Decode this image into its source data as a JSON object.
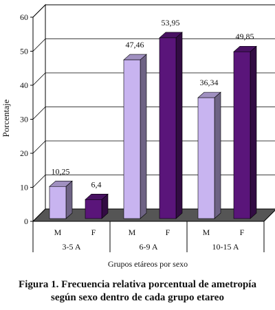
{
  "chart_data": {
    "type": "bar",
    "title": "",
    "ylabel": "Porcentaje",
    "xlabel": "Grupos etáreos por sexo",
    "ylim": [
      0,
      60
    ],
    "yticks": [
      "0",
      "10",
      "20",
      "30",
      "40",
      "50",
      "60"
    ],
    "categories": [
      {
        "group": "3-5 A",
        "sex": "M",
        "value": 10.25,
        "label": "10,25",
        "color": "#c8b4f0"
      },
      {
        "group": "3-5 A",
        "sex": "F",
        "value": 6.4,
        "label": "6,4",
        "color": "#5a157a"
      },
      {
        "group": "6-9 A",
        "sex": "M",
        "value": 47.46,
        "label": "47,46",
        "color": "#c8b4f0"
      },
      {
        "group": "6-9 A",
        "sex": "F",
        "value": 53.95,
        "label": "53,95",
        "color": "#5a157a"
      },
      {
        "group": "10-15 A",
        "sex": "M",
        "value": 36.34,
        "label": "36,34",
        "color": "#c8b4f0"
      },
      {
        "group": "10-15 A",
        "sex": "F",
        "value": 49.85,
        "label": "49,85",
        "color": "#5a157a"
      }
    ],
    "groups": [
      "3-5 A",
      "6-9 A",
      "10-15 A"
    ],
    "grid": true,
    "three_d": true
  },
  "caption": {
    "line1": "Figura 1. Frecuencia relativa porcentual de ametropía",
    "line2": "según sexo dentro de cada grupo etareo"
  }
}
